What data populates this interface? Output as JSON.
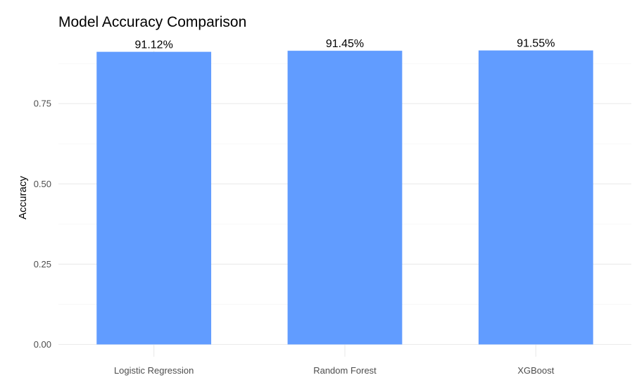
{
  "chart_data": {
    "type": "bar",
    "title": "Model Accuracy Comparison",
    "xlabel": "",
    "ylabel": "Accuracy",
    "categories": [
      "Logistic Regression",
      "Random Forest",
      "XGBoost"
    ],
    "values": [
      0.9112,
      0.9145,
      0.9155
    ],
    "data_labels": [
      "91.12%",
      "91.45%",
      "91.55%"
    ],
    "yticks": [
      0,
      0.25,
      0.5,
      0.75
    ],
    "ytick_labels": [
      "0.00",
      "0.25",
      "0.50",
      "0.75"
    ],
    "ylim": [
      0,
      0.96
    ],
    "grid": true,
    "legend": "none",
    "bar_color": "#619CFF"
  }
}
